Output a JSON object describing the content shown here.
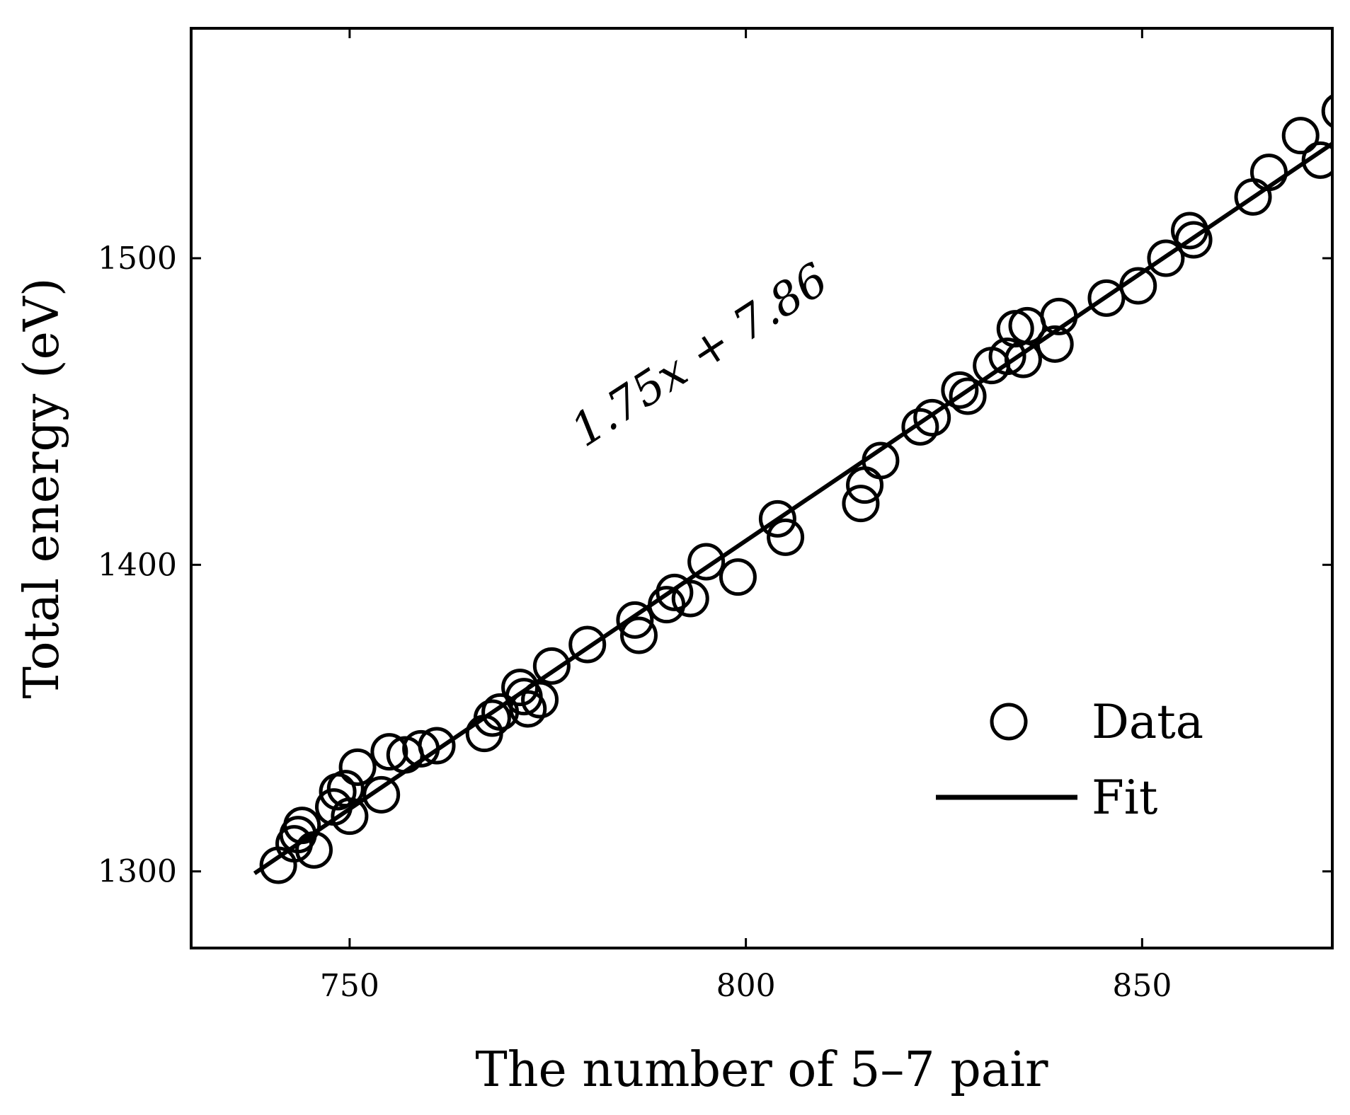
{
  "chart_data": {
    "type": "scatter",
    "xlabel": "The number of 5–7 pair",
    "ylabel": "Total energy (eV)",
    "xlim": [
      730,
      874
    ],
    "ylim": [
      1275,
      1575
    ],
    "xticks": [
      750,
      800,
      850
    ],
    "yticks": [
      1300,
      1400,
      1500
    ],
    "xtick_labels": [
      "750",
      "800",
      "850"
    ],
    "ytick_labels": [
      "1300",
      "1400",
      "1500"
    ],
    "grid": false,
    "legend": {
      "position": "bottom-right",
      "entries": [
        {
          "label": "Data",
          "marker": "open-circle"
        },
        {
          "label": "Fit",
          "marker": "line"
        }
      ]
    },
    "annotation": "1.75x + 7.86",
    "series": [
      {
        "name": "Data",
        "kind": "scatter",
        "x": [
          741,
          743,
          743.5,
          744,
          745.5,
          748,
          748.5,
          749.5,
          750,
          751,
          754,
          755,
          757,
          759,
          761,
          767,
          768,
          769,
          771.5,
          772,
          772.5,
          774,
          775.5,
          780,
          786,
          786.5,
          790,
          791,
          793,
          795,
          799,
          804,
          805,
          814.5,
          815,
          817,
          822,
          823.5,
          827,
          828,
          831,
          833,
          834,
          835,
          835.5,
          839,
          839.5,
          845.5,
          849.5,
          853,
          856,
          856.5,
          864,
          866,
          870,
          872.5,
          875
        ],
        "y": [
          1302,
          1309,
          1312,
          1315,
          1307,
          1321,
          1326,
          1327,
          1318,
          1334,
          1325,
          1339,
          1338,
          1340,
          1341,
          1345,
          1350,
          1352,
          1360,
          1357,
          1353,
          1356,
          1367,
          1374,
          1382,
          1377,
          1387,
          1391,
          1389,
          1401,
          1396,
          1415,
          1409,
          1420,
          1426,
          1434,
          1445,
          1448,
          1457,
          1455,
          1465,
          1468,
          1477,
          1467,
          1478,
          1472,
          1481,
          1487,
          1491,
          1500,
          1509,
          1506,
          1520,
          1528,
          1540,
          1532,
          1548
        ]
      },
      {
        "name": "Fit",
        "kind": "line",
        "x": [
          738,
          874
        ],
        "y": [
          1299.36,
          1537.36
        ]
      }
    ]
  }
}
